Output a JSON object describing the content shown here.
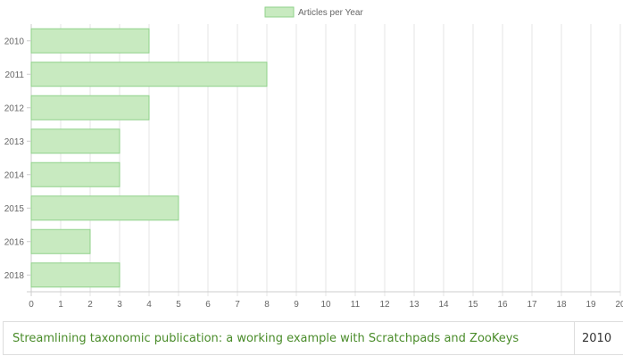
{
  "chart_data": {
    "type": "bar",
    "orientation": "horizontal",
    "categories": [
      "2010",
      "2011",
      "2012",
      "2013",
      "2014",
      "2015",
      "2016",
      "2018"
    ],
    "series": [
      {
        "name": "Articles per Year",
        "values": [
          4,
          8,
          4,
          3,
          3,
          5,
          2,
          3
        ]
      }
    ],
    "xlim": [
      0,
      20
    ],
    "x_ticks": [
      "0",
      "1",
      "2",
      "3",
      "4",
      "5",
      "6",
      "7",
      "8",
      "9",
      "10",
      "11",
      "12",
      "13",
      "14",
      "15",
      "16",
      "17",
      "18",
      "19",
      "20"
    ],
    "legend_position": "top",
    "grid": true,
    "colors": {
      "bar_fill": "#c8eac0",
      "bar_stroke": "#8fd18a",
      "grid": "#e6e6e6",
      "axis": "#cccccc"
    }
  },
  "table": {
    "rows": [
      {
        "title": "Streamlining taxonomic publication: a working example with Scratchpads and ZooKeys",
        "year": "2010"
      }
    ]
  }
}
